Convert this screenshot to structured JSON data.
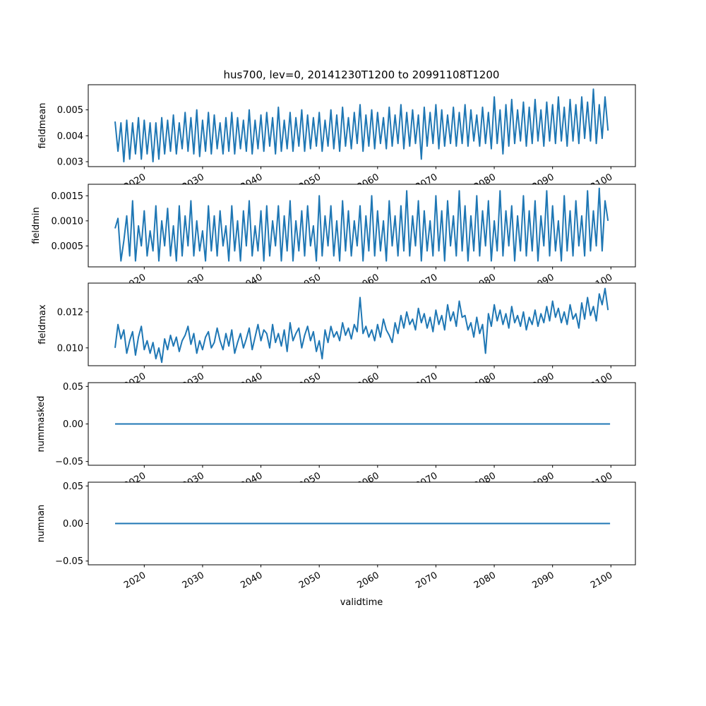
{
  "chart_data": {
    "type": "line",
    "title": "hus700, lev=0, 20141230T1200 to 20991108T1200",
    "xlabel": "validtime",
    "x_start": 2015.0,
    "x_step_years": 0.5,
    "xlim": [
      2010.4,
      2104.2
    ],
    "xticks": [
      2020,
      2030,
      2040,
      2050,
      2060,
      2070,
      2080,
      2090,
      2100
    ],
    "xtick_labels": [
      "2020",
      "2030",
      "2040",
      "2050",
      "2060",
      "2070",
      "2080",
      "2090",
      "2100"
    ],
    "line_color": "#1f77b4",
    "grid": false,
    "panels": [
      {
        "ylabel": "fieldmean",
        "ylim": [
          0.00281,
          0.00597
        ],
        "yticks": [
          0.003,
          0.004,
          0.005
        ],
        "ytick_labels": [
          "0.003",
          "0.004",
          "0.005"
        ],
        "values": [
          0.00455,
          0.0034,
          0.0045,
          0.003,
          0.0046,
          0.0031,
          0.0045,
          0.0033,
          0.0047,
          0.0031,
          0.0046,
          0.0033,
          0.0045,
          0.003,
          0.0045,
          0.0031,
          0.0047,
          0.0033,
          0.0046,
          0.0034,
          0.0048,
          0.0033,
          0.0045,
          0.0035,
          0.0049,
          0.0034,
          0.0047,
          0.0033,
          0.005,
          0.0032,
          0.0046,
          0.0034,
          0.0049,
          0.0033,
          0.0048,
          0.0035,
          0.0045,
          0.0033,
          0.0047,
          0.0034,
          0.0049,
          0.0033,
          0.0047,
          0.0035,
          0.0046,
          0.0034,
          0.005,
          0.0033,
          0.0046,
          0.0035,
          0.0048,
          0.0034,
          0.0049,
          0.0036,
          0.0047,
          0.0033,
          0.0051,
          0.0034,
          0.0046,
          0.0035,
          0.0049,
          0.0034,
          0.0047,
          0.0036,
          0.005,
          0.0034,
          0.0048,
          0.0035,
          0.0047,
          0.0036,
          0.0049,
          0.0034,
          0.0046,
          0.0036,
          0.005,
          0.0035,
          0.0048,
          0.0034,
          0.0051,
          0.0036,
          0.0047,
          0.0035,
          0.0049,
          0.0037,
          0.0052,
          0.0034,
          0.0048,
          0.0036,
          0.005,
          0.0035,
          0.0049,
          0.0037,
          0.0047,
          0.0035,
          0.0051,
          0.0036,
          0.0048,
          0.0037,
          0.0052,
          0.0035,
          0.0049,
          0.0036,
          0.005,
          0.0037,
          0.0048,
          0.0031,
          0.0051,
          0.0036,
          0.0049,
          0.0037,
          0.0052,
          0.0035,
          0.005,
          0.0036,
          0.0048,
          0.0037,
          0.0051,
          0.0036,
          0.0049,
          0.0037,
          0.0052,
          0.0036,
          0.005,
          0.0038,
          0.0048,
          0.0036,
          0.0051,
          0.0037,
          0.0049,
          0.0035,
          0.0055,
          0.0037,
          0.005,
          0.0033,
          0.0052,
          0.0036,
          0.0054,
          0.0037,
          0.005,
          0.0038,
          0.0053,
          0.0036,
          0.0051,
          0.0037,
          0.0054,
          0.0038,
          0.005,
          0.0036,
          0.0053,
          0.0038,
          0.0052,
          0.0037,
          0.0055,
          0.0038,
          0.0051,
          0.0036,
          0.0054,
          0.0038,
          0.0052,
          0.0037,
          0.0055,
          0.0039,
          0.0053,
          0.0038,
          0.0058,
          0.0037,
          0.0052,
          0.0039,
          0.0055,
          0.0042
        ]
      },
      {
        "ylabel": "fieldmin",
        "ylim": [
          8.2e-05,
          0.00173
        ],
        "yticks": [
          0.0005,
          0.001,
          0.0015
        ],
        "ytick_labels": [
          "0.0005",
          "0.0010",
          "0.0015"
        ],
        "values": [
          0.00085,
          0.00105,
          0.0002,
          0.0006,
          0.0011,
          0.0003,
          0.0014,
          0.0002,
          0.0009,
          0.0005,
          0.0012,
          0.0003,
          0.0008,
          0.0004,
          0.0013,
          0.0002,
          0.001,
          0.0005,
          0.00125,
          0.0003,
          0.0009,
          0.0002,
          0.0013,
          0.0003,
          0.0011,
          0.0005,
          0.0014,
          0.0003,
          0.001,
          0.0004,
          0.0008,
          0.0002,
          0.0013,
          0.0004,
          0.0011,
          0.0003,
          0.0012,
          0.0005,
          0.0009,
          0.0002,
          0.0013,
          0.0004,
          0.001,
          0.0002,
          0.0012,
          0.0005,
          0.0014,
          0.0003,
          0.0009,
          0.0004,
          0.0012,
          0.0002,
          0.0013,
          0.0003,
          0.001,
          0.0005,
          0.0013,
          0.0002,
          0.0011,
          0.0004,
          0.0014,
          0.0002,
          0.001,
          0.0004,
          0.0012,
          0.0003,
          0.0013,
          0.0005,
          0.0009,
          0.0002,
          0.0015,
          0.0003,
          0.0011,
          0.0005,
          0.0013,
          0.0003,
          0.001,
          0.0002,
          0.0014,
          0.0004,
          0.0012,
          0.0003,
          0.001,
          0.0005,
          0.0013,
          0.0002,
          0.0011,
          0.0004,
          0.0015,
          0.0003,
          0.0012,
          0.0004,
          0.001,
          0.0002,
          0.0014,
          0.0005,
          0.0011,
          0.0003,
          0.0013,
          0.0004,
          0.0016,
          0.0003,
          0.0011,
          0.0005,
          0.0014,
          0.0002,
          0.0012,
          0.0004,
          0.001,
          0.0003,
          0.0015,
          0.0004,
          0.0012,
          0.0002,
          0.0014,
          0.0005,
          0.0011,
          0.0003,
          0.0016,
          0.0004,
          0.0013,
          0.0002,
          0.0011,
          0.0004,
          0.0015,
          0.0003,
          0.0012,
          0.0005,
          0.0014,
          0.0002,
          0.001,
          0.0004,
          0.0016,
          0.0003,
          0.0012,
          0.0005,
          0.0013,
          0.0002,
          0.0011,
          0.0004,
          0.0015,
          0.0003,
          0.0012,
          0.0004,
          0.0014,
          0.0002,
          0.0011,
          0.0005,
          0.0016,
          0.0003,
          0.0013,
          0.0004,
          0.001,
          0.0002,
          0.0015,
          0.0004,
          0.0012,
          0.0003,
          0.0014,
          0.0005,
          0.0011,
          0.0003,
          0.0016,
          0.0004,
          0.0012,
          0.0005,
          0.00165,
          0.0004,
          0.0014,
          0.001
        ]
      },
      {
        "ylabel": "fieldmax",
        "ylim": [
          0.00901,
          0.0136
        ],
        "yticks": [
          0.01,
          0.012
        ],
        "ytick_labels": [
          "0.010",
          "0.012"
        ],
        "values": [
          0.01,
          0.0113,
          0.0105,
          0.011,
          0.0097,
          0.0104,
          0.0109,
          0.0096,
          0.0106,
          0.0112,
          0.0099,
          0.0104,
          0.0097,
          0.0103,
          0.0094,
          0.01,
          0.0092,
          0.0105,
          0.0099,
          0.0107,
          0.0101,
          0.0106,
          0.0098,
          0.0104,
          0.0107,
          0.0112,
          0.0102,
          0.0108,
          0.0097,
          0.0104,
          0.0099,
          0.0106,
          0.0109,
          0.01,
          0.0103,
          0.0111,
          0.0104,
          0.0099,
          0.0108,
          0.0101,
          0.011,
          0.0097,
          0.0103,
          0.0108,
          0.01,
          0.0105,
          0.0111,
          0.0099,
          0.0106,
          0.0113,
          0.0104,
          0.011,
          0.0108,
          0.01,
          0.0113,
          0.0103,
          0.0108,
          0.0101,
          0.011,
          0.0098,
          0.0114,
          0.0104,
          0.0108,
          0.0111,
          0.01,
          0.0107,
          0.0112,
          0.0104,
          0.0109,
          0.0098,
          0.0104,
          0.0094,
          0.011,
          0.0103,
          0.0112,
          0.0106,
          0.0109,
          0.0104,
          0.0114,
          0.0107,
          0.0111,
          0.0105,
          0.0113,
          0.0109,
          0.0128,
          0.0108,
          0.0112,
          0.0106,
          0.011,
          0.0104,
          0.0113,
          0.0106,
          0.0116,
          0.011,
          0.0107,
          0.0103,
          0.0114,
          0.0108,
          0.0118,
          0.0111,
          0.012,
          0.0113,
          0.0116,
          0.011,
          0.0122,
          0.0114,
          0.0119,
          0.0111,
          0.0117,
          0.0109,
          0.0121,
          0.0113,
          0.0118,
          0.011,
          0.0124,
          0.0115,
          0.012,
          0.0112,
          0.0126,
          0.0117,
          0.0118,
          0.011,
          0.0114,
          0.0106,
          0.0117,
          0.0108,
          0.0113,
          0.0097,
          0.0119,
          0.0112,
          0.0124,
          0.0115,
          0.0121,
          0.0113,
          0.0119,
          0.0111,
          0.0123,
          0.0114,
          0.0118,
          0.0112,
          0.012,
          0.011,
          0.0117,
          0.0113,
          0.0121,
          0.0112,
          0.0119,
          0.0114,
          0.0123,
          0.0115,
          0.0126,
          0.0117,
          0.0122,
          0.0114,
          0.012,
          0.0113,
          0.0124,
          0.0116,
          0.0119,
          0.0111,
          0.0125,
          0.0116,
          0.0128,
          0.0118,
          0.0123,
          0.0115,
          0.013,
          0.0124,
          0.0133,
          0.0121
        ]
      },
      {
        "ylabel": "nummasked",
        "ylim": [
          -0.055,
          0.055
        ],
        "yticks": [
          -0.05,
          0.0,
          0.05
        ],
        "ytick_labels": [
          "−0.05",
          "0.00",
          "0.05"
        ],
        "constant_value": 0
      },
      {
        "ylabel": "numnan",
        "ylim": [
          -0.055,
          0.055
        ],
        "yticks": [
          -0.05,
          0.0,
          0.05
        ],
        "ytick_labels": [
          "−0.05",
          "0.00",
          "0.05"
        ],
        "constant_value": 0
      }
    ]
  }
}
